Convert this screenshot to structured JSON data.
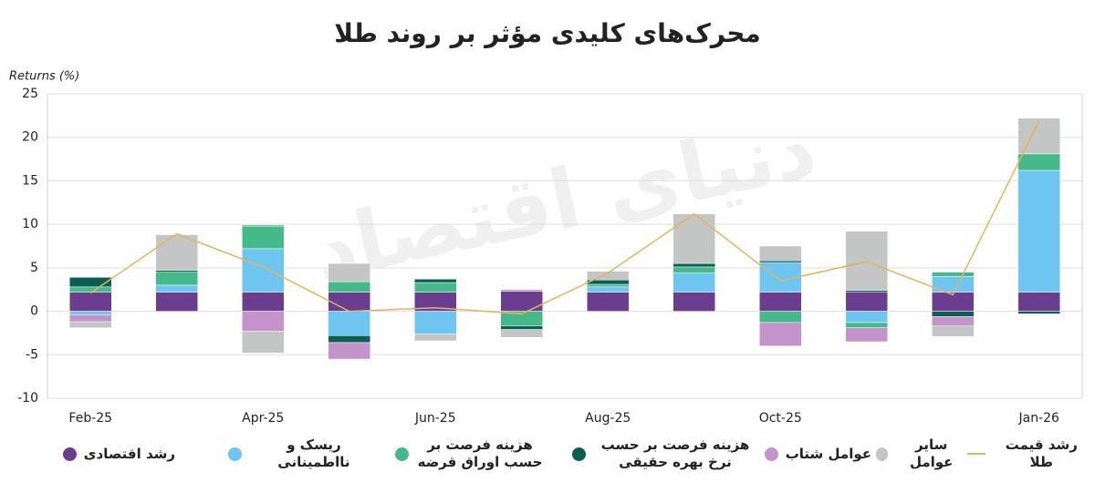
{
  "chart_data": {
    "type": "bar",
    "stacked": true,
    "title": "محرک‌های کلیدی مؤثر بر روند طلا",
    "watermark": "دنیای اقتصاد",
    "y_label": "Returns (%)",
    "categories": [
      "Feb-25",
      null,
      "Apr-25",
      null,
      "Jun-25",
      null,
      "Aug-25",
      null,
      "Oct-25",
      null,
      null,
      "Jan-26"
    ],
    "ylim": [
      -10,
      25
    ],
    "yticks": [
      -10,
      -5,
      0,
      5,
      10,
      15,
      20,
      25
    ],
    "grid": true,
    "series": [
      {
        "name": "رشد اقتصادی",
        "color": "#6b3d8f",
        "values": [
          2.2,
          2.2,
          2.2,
          2.2,
          2.2,
          2.3,
          2.2,
          2.2,
          2.2,
          2.2,
          2.2,
          2.2
        ]
      },
      {
        "name": "ریسک و نااطمینانی",
        "color": "#6ec6f0",
        "values": [
          -0.4,
          0.8,
          5.0,
          -2.8,
          -2.6,
          0,
          0.6,
          2.2,
          3.4,
          -1.3,
          1.8,
          14.0
        ]
      },
      {
        "name": "هزینه فرصت بر حسب اوراق قرضه",
        "color": "#45b98a",
        "values": [
          0.6,
          1.5,
          2.6,
          1.2,
          1.1,
          -1.7,
          0.3,
          0.7,
          -1.3,
          -0.6,
          0.5,
          1.9
        ]
      },
      {
        "name": "هزینه فرصت بر حسب نرخ بهره حقیقی",
        "color": "#0b5e52",
        "values": [
          1.1,
          0.2,
          0.1,
          -0.8,
          0.4,
          -0.4,
          0.5,
          0.4,
          0.2,
          0.2,
          -0.6,
          -0.3
        ]
      },
      {
        "name": "عوامل شتاب",
        "color": "#c593cc",
        "values": [
          -0.8,
          0,
          -2.3,
          -1.9,
          0,
          0.2,
          0,
          0,
          -2.7,
          -1.6,
          -1.1,
          0
        ]
      },
      {
        "name": "سایر عوامل",
        "color": "#c4c6c5",
        "values": [
          -0.7,
          4.1,
          -2.5,
          2.1,
          -0.8,
          -0.9,
          1.0,
          5.7,
          1.7,
          6.8,
          -1.2,
          4.1
        ]
      },
      {
        "name": "رشد قیمت طلا",
        "type": "line",
        "color": "#e3b45a",
        "values": [
          2.1,
          8.9,
          5.1,
          0.0,
          0.4,
          -0.3,
          4.4,
          11.2,
          3.5,
          5.7,
          1.9,
          21.9
        ]
      }
    ]
  }
}
